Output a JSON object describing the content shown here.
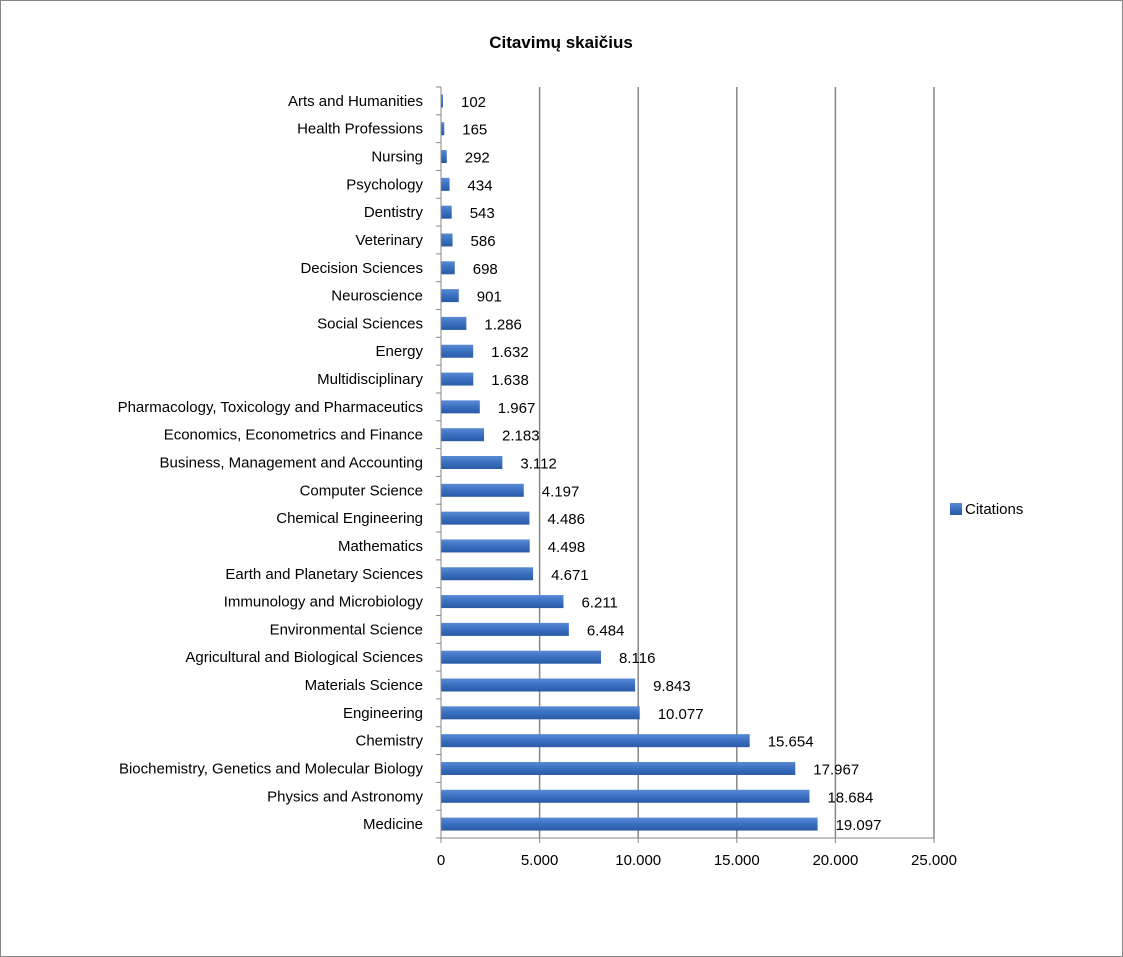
{
  "chart_data": {
    "type": "bar",
    "orientation": "horizontal",
    "title": "Citavimų skaičius",
    "xlabel": "",
    "ylabel": "",
    "categories": [
      "Arts and Humanities",
      "Health Professions",
      "Nursing",
      "Psychology",
      "Dentistry",
      "Veterinary",
      "Decision Sciences",
      "Neuroscience",
      "Social Sciences",
      "Energy",
      "Multidisciplinary",
      "Pharmacology, Toxicology and Pharmaceutics",
      "Economics, Econometrics and Finance",
      "Business, Management and Accounting",
      "Computer Science",
      "Chemical Engineering",
      "Mathematics",
      "Earth and Planetary Sciences",
      "Immunology and Microbiology",
      "Environmental Science",
      "Agricultural and Biological Sciences",
      "Materials Science",
      "Engineering",
      "Chemistry",
      "Biochemistry, Genetics and Molecular Biology",
      "Physics and Astronomy",
      "Medicine"
    ],
    "series": [
      {
        "name": "Citations",
        "color": "#3a6fc0",
        "values": [
          102,
          165,
          292,
          434,
          543,
          586,
          698,
          901,
          1286,
          1632,
          1638,
          1967,
          2183,
          3112,
          4197,
          4486,
          4498,
          4671,
          6211,
          6484,
          8116,
          9843,
          10077,
          15654,
          17967,
          18684,
          19097
        ],
        "value_labels": [
          "102",
          "165",
          "292",
          "434",
          "543",
          "586",
          "698",
          "901",
          "1.286",
          "1.632",
          "1.638",
          "1.967",
          "2.183",
          "3.112",
          "4.197",
          "4.486",
          "4.498",
          "4.671",
          "6.211",
          "6.484",
          "8.116",
          "9.843",
          "10.077",
          "15.654",
          "17.967",
          "18.684",
          "19.097"
        ]
      }
    ],
    "xlim": [
      0,
      25000
    ],
    "x_ticks": [
      0,
      5000,
      10000,
      15000,
      20000,
      25000
    ],
    "x_tick_labels": [
      "0",
      "5.000",
      "10.000",
      "15.000",
      "20.000",
      "25.000"
    ],
    "grid": "vertical",
    "legend": {
      "position": "right",
      "entries": [
        "Citations"
      ]
    }
  }
}
